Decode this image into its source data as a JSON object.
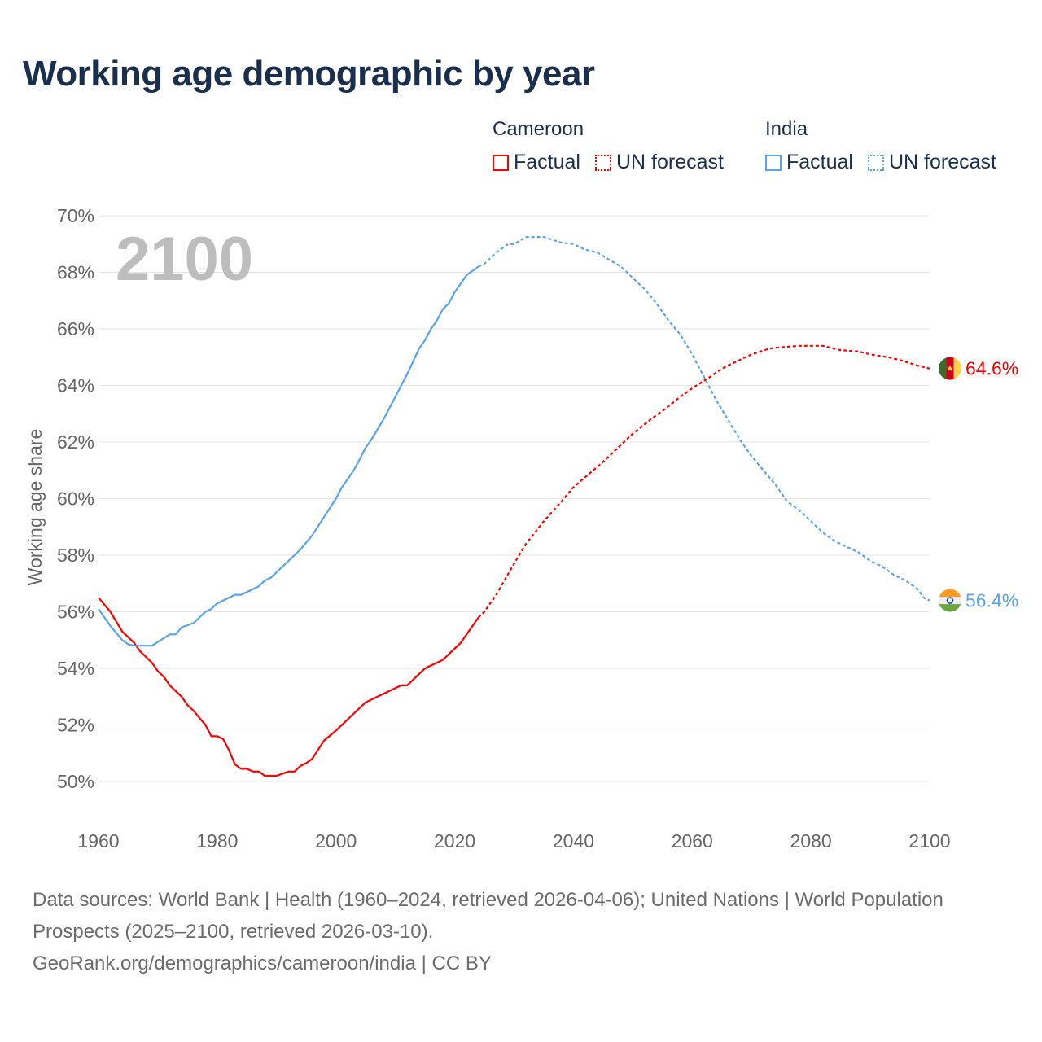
{
  "title": "Working age demographic by year",
  "legend": {
    "groups": [
      {
        "name": "Cameroon",
        "color": "#ff0000",
        "factual": "Factual",
        "forecast": "UN forecast"
      },
      {
        "name": "India",
        "color": "#5ba4ea",
        "factual": "Factual",
        "forecast": "UN forecast"
      }
    ]
  },
  "footer": {
    "sources": "Data sources: World Bank | Health (1960–2024, retrieved 2026-04-06); United Nations | World Population Prospects (2025–2100, retrieved 2026-03-10).",
    "link": "GeoRank.org/demographics/cameroon/india | CC BY"
  },
  "chart_data": {
    "type": "line",
    "title": "Working age demographic by year",
    "xlabel": "",
    "ylabel": "Working age share",
    "year_label": "2100",
    "xlim": [
      1960,
      2100
    ],
    "ylim": [
      50,
      70
    ],
    "x_ticks": [
      1960,
      1980,
      2000,
      2020,
      2040,
      2060,
      2080,
      2100
    ],
    "x_tick_labels": [
      "1960",
      "1980",
      "2000",
      "2020",
      "2040",
      "2060",
      "2080",
      "2100"
    ],
    "y_ticks": [
      50,
      52,
      54,
      56,
      58,
      60,
      62,
      64,
      66,
      68,
      70
    ],
    "y_tick_labels": [
      "50%",
      "52%",
      "54%",
      "56%",
      "58%",
      "60%",
      "62%",
      "64%",
      "66%",
      "68%",
      "70%"
    ],
    "grid": true,
    "forecast_start": 2024,
    "series": [
      {
        "name": "Cameroon",
        "color": "#ff0000",
        "end_label": "64.6%",
        "flag": "cameroon-flag",
        "points": [
          [
            1960,
            56.5
          ],
          [
            1962,
            56.0
          ],
          [
            1964,
            55.3
          ],
          [
            1966,
            54.9
          ],
          [
            1967,
            54.6
          ],
          [
            1969,
            54.2
          ],
          [
            1970,
            53.9
          ],
          [
            1971,
            53.7
          ],
          [
            1972,
            53.4
          ],
          [
            1974,
            53.0
          ],
          [
            1975,
            52.7
          ],
          [
            1976,
            52.5
          ],
          [
            1978,
            52.0
          ],
          [
            1979,
            51.6
          ],
          [
            1980,
            51.6
          ],
          [
            1981,
            51.5
          ],
          [
            1982,
            51.1
          ],
          [
            1983,
            50.6
          ],
          [
            1984,
            50.45
          ],
          [
            1985,
            50.45
          ],
          [
            1986,
            50.35
          ],
          [
            1987,
            50.35
          ],
          [
            1988,
            50.2
          ],
          [
            1990,
            50.2
          ],
          [
            1992,
            50.35
          ],
          [
            1993,
            50.35
          ],
          [
            1994,
            50.55
          ],
          [
            1995,
            50.65
          ],
          [
            1996,
            50.8
          ],
          [
            1998,
            51.45
          ],
          [
            2000,
            51.8
          ],
          [
            2002,
            52.2
          ],
          [
            2004,
            52.6
          ],
          [
            2005,
            52.8
          ],
          [
            2008,
            53.1
          ],
          [
            2011,
            53.4
          ],
          [
            2012,
            53.4
          ],
          [
            2015,
            54.0
          ],
          [
            2018,
            54.3
          ],
          [
            2020,
            54.7
          ],
          [
            2021,
            54.9
          ],
          [
            2022,
            55.2
          ],
          [
            2024,
            55.8
          ],
          [
            2025,
            56.0
          ],
          [
            2027,
            56.6
          ],
          [
            2030,
            57.7
          ],
          [
            2032,
            58.4
          ],
          [
            2035,
            59.2
          ],
          [
            2038,
            59.9
          ],
          [
            2040,
            60.4
          ],
          [
            2045,
            61.3
          ],
          [
            2048,
            61.9
          ],
          [
            2050,
            62.3
          ],
          [
            2053,
            62.8
          ],
          [
            2055,
            63.1
          ],
          [
            2058,
            63.6
          ],
          [
            2060,
            63.9
          ],
          [
            2063,
            64.3
          ],
          [
            2065,
            64.6
          ],
          [
            2068,
            64.9
          ],
          [
            2070,
            65.1
          ],
          [
            2073,
            65.3
          ],
          [
            2075,
            65.35
          ],
          [
            2078,
            65.4
          ],
          [
            2082,
            65.4
          ],
          [
            2085,
            65.25
          ],
          [
            2088,
            65.2
          ],
          [
            2090,
            65.1
          ],
          [
            2093,
            65.0
          ],
          [
            2095,
            64.9
          ],
          [
            2098,
            64.7
          ],
          [
            2100,
            64.6
          ]
        ]
      },
      {
        "name": "India",
        "color": "#5ba4ea",
        "end_label": "56.4%",
        "flag": "india-flag",
        "points": [
          [
            1960,
            56.1
          ],
          [
            1962,
            55.5
          ],
          [
            1964,
            55.0
          ],
          [
            1965,
            54.85
          ],
          [
            1966,
            54.8
          ],
          [
            1969,
            54.8
          ],
          [
            1972,
            55.2
          ],
          [
            1973,
            55.2
          ],
          [
            1974,
            55.45
          ],
          [
            1976,
            55.6
          ],
          [
            1978,
            56.0
          ],
          [
            1979,
            56.1
          ],
          [
            1980,
            56.3
          ],
          [
            1983,
            56.6
          ],
          [
            1984,
            56.6
          ],
          [
            1987,
            56.9
          ],
          [
            1988,
            57.1
          ],
          [
            1989,
            57.2
          ],
          [
            1990,
            57.4
          ],
          [
            1994,
            58.2
          ],
          [
            1996,
            58.7
          ],
          [
            2000,
            60.0
          ],
          [
            2001,
            60.4
          ],
          [
            2003,
            61.0
          ],
          [
            2005,
            61.8
          ],
          [
            2006,
            62.1
          ],
          [
            2008,
            62.8
          ],
          [
            2010,
            63.6
          ],
          [
            2012,
            64.4
          ],
          [
            2014,
            65.3
          ],
          [
            2015,
            65.6
          ],
          [
            2016,
            66.0
          ],
          [
            2017,
            66.3
          ],
          [
            2018,
            66.7
          ],
          [
            2019,
            66.9
          ],
          [
            2020,
            67.3
          ],
          [
            2022,
            67.9
          ],
          [
            2024,
            68.2
          ],
          [
            2025,
            68.3
          ],
          [
            2027,
            68.7
          ],
          [
            2029,
            69.0
          ],
          [
            2030,
            69.0
          ],
          [
            2032,
            69.25
          ],
          [
            2035,
            69.25
          ],
          [
            2038,
            69.05
          ],
          [
            2040,
            69.0
          ],
          [
            2042,
            68.8
          ],
          [
            2044,
            68.7
          ],
          [
            2046,
            68.45
          ],
          [
            2048,
            68.2
          ],
          [
            2050,
            67.8
          ],
          [
            2052,
            67.4
          ],
          [
            2054,
            66.9
          ],
          [
            2056,
            66.3
          ],
          [
            2058,
            65.8
          ],
          [
            2060,
            65.1
          ],
          [
            2062,
            64.3
          ],
          [
            2064,
            63.5
          ],
          [
            2066,
            62.8
          ],
          [
            2068,
            62.1
          ],
          [
            2070,
            61.5
          ],
          [
            2072,
            61.0
          ],
          [
            2074,
            60.5
          ],
          [
            2076,
            59.9
          ],
          [
            2078,
            59.6
          ],
          [
            2080,
            59.2
          ],
          [
            2082,
            58.8
          ],
          [
            2084,
            58.5
          ],
          [
            2086,
            58.3
          ],
          [
            2088,
            58.1
          ],
          [
            2090,
            57.8
          ],
          [
            2092,
            57.6
          ],
          [
            2094,
            57.3
          ],
          [
            2096,
            57.1
          ],
          [
            2098,
            56.8
          ],
          [
            2099,
            56.5
          ],
          [
            2100,
            56.4
          ]
        ]
      }
    ]
  }
}
